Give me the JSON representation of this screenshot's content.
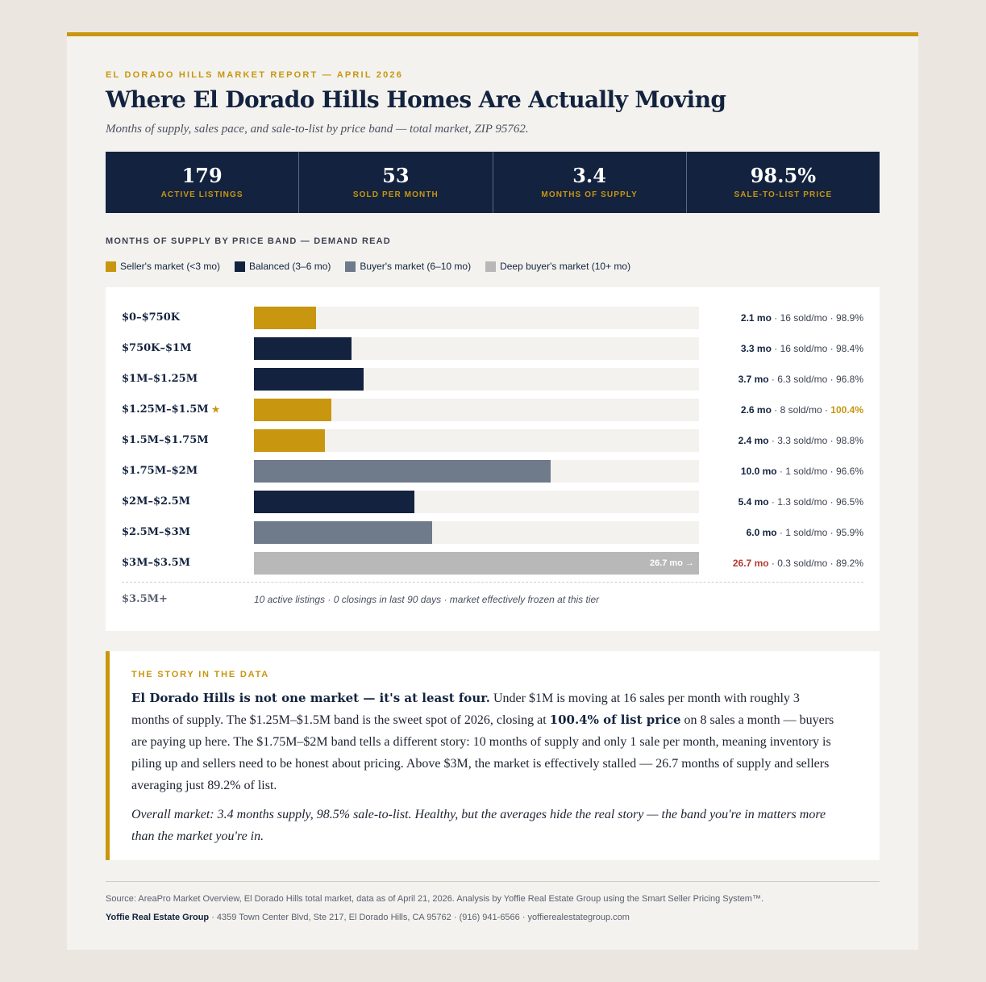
{
  "header": {
    "eyebrow": "EL DORADO HILLS MARKET REPORT — APRIL 2026",
    "title": "Where El Dorado Hills Homes Are Actually Moving",
    "subtitle": "Months of supply, sales pace, and sale-to-list by price band — total market, ZIP 95762."
  },
  "kpis": [
    {
      "value": "179",
      "label": "ACTIVE LISTINGS"
    },
    {
      "value": "53",
      "label": "SOLD PER MONTH"
    },
    {
      "value": "3.4",
      "label": "MONTHS OF SUPPLY"
    },
    {
      "value": "98.5%",
      "label": "SALE-TO-LIST PRICE"
    }
  ],
  "colors": {
    "gold": "#c8960f",
    "navy": "#13223f",
    "slate": "#6f7a8a",
    "gray": "#b8b8b8",
    "red": "#b53a2e",
    "track": "#f3f2ee"
  },
  "chart_data": {
    "type": "bar",
    "orientation": "horizontal",
    "title": "MONTHS OF SUPPLY BY PRICE BAND — DEMAND READ",
    "legend": [
      {
        "label": "Seller's market (<3 mo)",
        "color": "#c8960f"
      },
      {
        "label": "Balanced (3–6 mo)",
        "color": "#13223f"
      },
      {
        "label": "Buyer's market (6–10 mo)",
        "color": "#6f7a8a"
      },
      {
        "label": "Deep buyer's market (10+ mo)",
        "color": "#b8b8b8"
      }
    ],
    "xlim": [
      0,
      15
    ],
    "categories": [
      "$0–$750K",
      "$750K–$1M",
      "$1M–$1.25M",
      "$1.25M–$1.5M",
      "$1.5M–$1.75M",
      "$1.75M–$2M",
      "$2M–$2.5M",
      "$2.5M–$3M",
      "$3M–$3.5M"
    ],
    "rows": [
      {
        "band": "$0–$750K",
        "months": 2.1,
        "months_label": "2.1 mo",
        "sold_label": "16 sold/mo",
        "stl_label": "98.9%",
        "color": "#c8960f"
      },
      {
        "band": "$750K–$1M",
        "months": 3.3,
        "months_label": "3.3 mo",
        "sold_label": "16 sold/mo",
        "stl_label": "98.4%",
        "color": "#13223f"
      },
      {
        "band": "$1M–$1.25M",
        "months": 3.7,
        "months_label": "3.7 mo",
        "sold_label": "6.3 sold/mo",
        "stl_label": "96.8%",
        "color": "#13223f"
      },
      {
        "band": "$1.25M–$1.5M",
        "months": 2.6,
        "months_label": "2.6 mo",
        "sold_label": "8 sold/mo",
        "stl_label": "100.4%",
        "color": "#c8960f",
        "star": "★",
        "stl_highlight": true
      },
      {
        "band": "$1.5M–$1.75M",
        "months": 2.4,
        "months_label": "2.4 mo",
        "sold_label": "3.3 sold/mo",
        "stl_label": "98.8%",
        "color": "#c8960f"
      },
      {
        "band": "$1.75M–$2M",
        "months": 10.0,
        "months_label": "10.0 mo",
        "sold_label": "1 sold/mo",
        "stl_label": "96.6%",
        "color": "#6f7a8a"
      },
      {
        "band": "$2M–$2.5M",
        "months": 5.4,
        "months_label": "5.4 mo",
        "sold_label": "1.3 sold/mo",
        "stl_label": "96.5%",
        "color": "#13223f"
      },
      {
        "band": "$2.5M–$3M",
        "months": 6.0,
        "months_label": "6.0 mo",
        "sold_label": "1 sold/mo",
        "stl_label": "95.9%",
        "color": "#6f7a8a"
      },
      {
        "band": "$3M–$3.5M",
        "months": 26.7,
        "months_label": "26.7 mo",
        "sold_label": "0.3 sold/mo",
        "stl_label": "89.2%",
        "color": "#b8b8b8",
        "capped": true,
        "bar_label": "26.7 mo →",
        "months_red": true
      }
    ],
    "frozen": {
      "band": "$3.5M+",
      "note": "10 active listings · 0 closings in last 90 days · market effectively frozen at this tier"
    }
  },
  "story": {
    "eyebrow": "THE STORY IN THE DATA",
    "lead_bold": "El Dorado Hills is not one market — it's at least four.",
    "p1_a": " Under $1M is moving at 16 sales per month with roughly 3 months of supply. The $1.25M–$1.5M band is the sweet spot of 2026, closing at ",
    "p1_bold": "100.4% of list price",
    "p1_b": " on 8 sales a month — buyers are paying up here. The $1.75M–$2M band tells a different story: 10 months of supply and only 1 sale per month, meaning inventory is piling up and sellers need to be honest about pricing. Above $3M, the market is effectively stalled — 26.7 months of supply and sellers averaging just 89.2% of list.",
    "closing": "Overall market: 3.4 months supply, 98.5% sale-to-list. Healthy, but the averages hide the real story — the band you're in matters more than the market you're in."
  },
  "footer": {
    "source": "Source: AreaPro Market Overview, El Dorado Hills total market, data as of April 21, 2026. Analysis by Yoffie Real Estate Group using the Smart Seller Pricing System™.",
    "org": "Yoffie Real Estate Group",
    "address": " · 4359 Town Center Blvd, Ste 217, El Dorado Hills, CA 95762 · (916) 941-6566 · yoffierealestategroup.com"
  }
}
